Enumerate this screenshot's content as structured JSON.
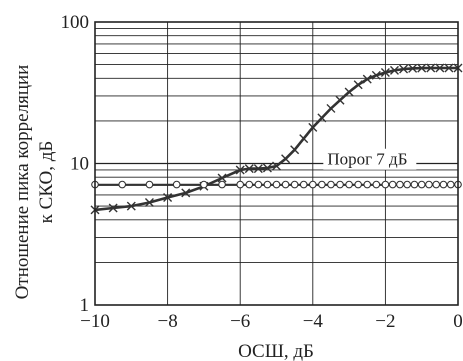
{
  "chart_data": {
    "type": "line",
    "xlabel": "ОСШ, дБ",
    "ylabel": "Отношение пика корреляции к СКО, дБ",
    "ylabel_lines": [
      "Отношение пика корреляции",
      "к СКО, дБ"
    ],
    "xlim": [
      -10,
      0
    ],
    "ylim": [
      1,
      100
    ],
    "yscale": "log",
    "grid": true,
    "x_ticks": [
      -10,
      -8,
      -6,
      -4,
      -2,
      0
    ],
    "x_tick_labels": [
      "−10",
      "−8",
      "−6",
      "−4",
      "−2",
      "0"
    ],
    "y_ticks": [
      1,
      10,
      100
    ],
    "y_tick_labels": [
      "1",
      "10",
      "100"
    ],
    "annotations": [
      {
        "text": "Порог 7 дБ",
        "x": -3.6,
        "y": 9.8
      }
    ],
    "series": [
      {
        "marker": "x",
        "x": [
          -10,
          -9.5,
          -9,
          -8.5,
          -8,
          -7.5,
          -7,
          -6.5,
          -6,
          -5.75,
          -5.5,
          -5.25,
          -5,
          -4.75,
          -4.5,
          -4.25,
          -4,
          -3.75,
          -3.5,
          -3.25,
          -3,
          -2.75,
          -2.5,
          -2.25,
          -2,
          -1.75,
          -1.5,
          -1.25,
          -1,
          -0.75,
          -0.5,
          -0.25,
          0
        ],
        "y": [
          4.7,
          4.85,
          5.0,
          5.3,
          5.75,
          6.2,
          6.9,
          7.9,
          9.0,
          9.2,
          9.2,
          9.3,
          9.6,
          10.8,
          12.5,
          15.0,
          18.0,
          21.0,
          24.5,
          28.0,
          32.0,
          36.0,
          39.5,
          42.0,
          44.0,
          45.5,
          46.5,
          47.0,
          47.2,
          47.3,
          47.3,
          47.3,
          47.3
        ]
      },
      {
        "marker": "circle",
        "x": [
          -10,
          -9.25,
          -8.5,
          -7.75,
          -7,
          -6.5,
          -6,
          -5.75,
          -5.5,
          -5.25,
          -5,
          -4.75,
          -4.5,
          -4.25,
          -4,
          -3.75,
          -3.5,
          -3.25,
          -3,
          -2.75,
          -2.5,
          -2.25,
          -2,
          -1.8,
          -1.6,
          -1.4,
          -1.2,
          -1,
          -0.8,
          -0.6,
          -0.4,
          -0.2,
          0
        ],
        "y": [
          7.1,
          7.1,
          7.1,
          7.1,
          7.1,
          7.1,
          7.1,
          7.1,
          7.1,
          7.1,
          7.1,
          7.1,
          7.1,
          7.1,
          7.1,
          7.1,
          7.1,
          7.1,
          7.1,
          7.1,
          7.1,
          7.1,
          7.1,
          7.1,
          7.1,
          7.1,
          7.1,
          7.1,
          7.1,
          7.1,
          7.1,
          7.1,
          7.1
        ]
      }
    ]
  }
}
